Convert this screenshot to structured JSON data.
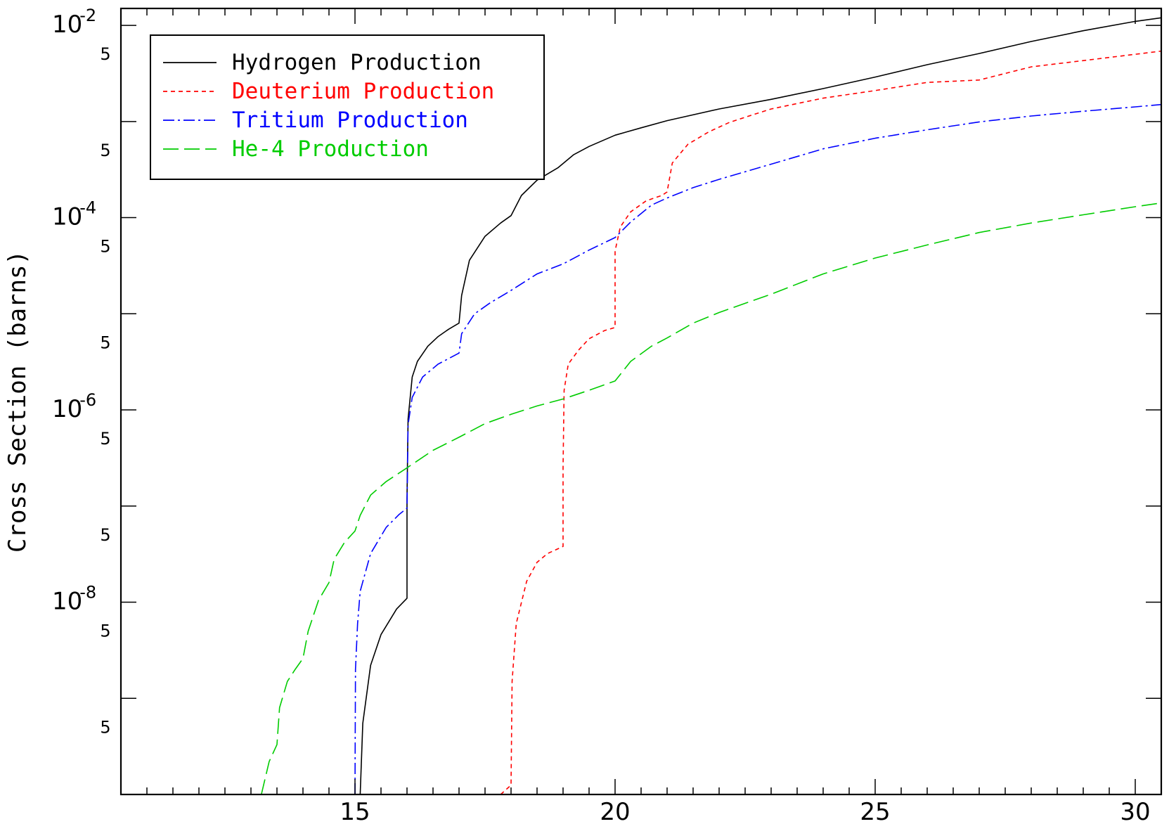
{
  "chart_data": {
    "type": "line",
    "title": "",
    "xlabel": "",
    "ylabel": "Cross Section (barns)",
    "xlim": [
      10.5,
      30.5
    ],
    "ylim": [
      1e-10,
      0.015
    ],
    "yscale": "log",
    "grid": false,
    "legend_position": "top-left",
    "x_ticks": [
      15,
      20,
      25,
      30
    ],
    "y_major_ticks": [
      {
        "value": 0.01,
        "base": "10",
        "exp": "-2"
      },
      {
        "value": 0.0001,
        "base": "10",
        "exp": "-4"
      },
      {
        "value": 1e-06,
        "base": "10",
        "exp": "-6"
      },
      {
        "value": 1e-08,
        "base": "10",
        "exp": "-8"
      }
    ],
    "y_five_ticks": [
      {
        "value": 0.005,
        "label": "5"
      },
      {
        "value": 0.0005,
        "label": "5"
      },
      {
        "value": 5e-05,
        "label": "5"
      },
      {
        "value": 5e-06,
        "label": "5"
      },
      {
        "value": 5e-07,
        "label": "5"
      },
      {
        "value": 5e-08,
        "label": "5"
      },
      {
        "value": 5e-09,
        "label": "5"
      },
      {
        "value": 5e-10,
        "label": "5"
      }
    ],
    "series": [
      {
        "name": "Hydrogen Production",
        "color": "#000000",
        "dash": "",
        "x": [
          15.1,
          15.15,
          15.3,
          15.5,
          15.8,
          16.0,
          16.0,
          16.02,
          16.1,
          16.2,
          16.4,
          16.6,
          16.8,
          17.0,
          17.05,
          17.2,
          17.5,
          17.8,
          18.0,
          18.2,
          18.5,
          18.9,
          19.2,
          19.5,
          20.0,
          20.5,
          21.0,
          22.0,
          23.0,
          24.0,
          25.0,
          26.0,
          27.0,
          28.0,
          29.0,
          30.0,
          30.5
        ],
        "y": [
          1e-10,
          5.5e-10,
          2.2e-09,
          4.6e-09,
          8.5e-09,
          1.1e-08,
          1.2e-07,
          8e-07,
          2.2e-06,
          3.2e-06,
          4.6e-06,
          5.8e-06,
          6.9e-06,
          8e-06,
          1.55e-05,
          3.6e-05,
          6.4e-05,
          8.8e-05,
          0.000105,
          0.00017,
          0.000245,
          0.00033,
          0.00045,
          0.00055,
          0.00072,
          0.00086,
          0.00102,
          0.00135,
          0.0017,
          0.0022,
          0.0029,
          0.0039,
          0.0051,
          0.0068,
          0.0088,
          0.011,
          0.012
        ]
      },
      {
        "name": "Deuterium Production",
        "color": "#ff0000",
        "dash": "6,5",
        "x": [
          17.8,
          18.0,
          18.02,
          18.1,
          18.3,
          18.5,
          18.7,
          19.0,
          19.0,
          19.02,
          19.1,
          19.3,
          19.5,
          19.8,
          20.0,
          20.0,
          20.1,
          20.3,
          20.6,
          20.9,
          21.0,
          21.1,
          21.4,
          21.8,
          22.2,
          22.7,
          23.0,
          24.0,
          25.0,
          26.0,
          27.0,
          28.0,
          29.0,
          30.0,
          30.5
        ],
        "y": [
          1e-10,
          1.25e-10,
          1.5e-09,
          6e-09,
          1.65e-08,
          2.6e-08,
          3.2e-08,
          3.8e-08,
          2.5e-07,
          1.6e-06,
          3e-06,
          4.2e-06,
          5.5e-06,
          6.7e-06,
          7.2e-06,
          4.5e-05,
          8e-05,
          0.000115,
          0.00015,
          0.00017,
          0.000185,
          0.00037,
          0.00058,
          0.00078,
          0.00098,
          0.0012,
          0.00135,
          0.00175,
          0.0021,
          0.00255,
          0.0027,
          0.0037,
          0.0043,
          0.005,
          0.0054
        ]
      },
      {
        "name": "Tritium Production",
        "color": "#0000ff",
        "dash": "16,5,3,5",
        "x": [
          15.0,
          15.01,
          15.05,
          15.1,
          15.3,
          15.6,
          15.85,
          16.0,
          16.02,
          16.1,
          16.3,
          16.6,
          17.0,
          17.05,
          17.3,
          17.6,
          18.0,
          18.5,
          19.0,
          19.5,
          20.0,
          20.3,
          20.7,
          21.0,
          21.5,
          22.0,
          23.0,
          24.0,
          25.0,
          26.0,
          27.0,
          28.0,
          29.0,
          30.0,
          30.5
        ],
        "y": [
          1e-10,
          2e-09,
          6e-09,
          1.3e-08,
          3.2e-08,
          6e-08,
          8.2e-08,
          9.5e-08,
          7e-07,
          1.35e-06,
          2.2e-06,
          3e-06,
          3.9e-06,
          6.2e-06,
          1e-05,
          1.3e-05,
          1.75e-05,
          2.6e-05,
          3.3e-05,
          4.6e-05,
          6.2e-05,
          9e-05,
          0.000135,
          0.00016,
          0.000205,
          0.00025,
          0.00036,
          0.00052,
          0.00067,
          0.00082,
          0.00099,
          0.00114,
          0.00128,
          0.00142,
          0.0015
        ]
      },
      {
        "name": "He-4 Production",
        "color": "#00cc00",
        "dash": "22,8",
        "x": [
          13.2,
          13.35,
          13.5,
          13.55,
          13.7,
          13.85,
          14.0,
          14.1,
          14.3,
          14.5,
          14.6,
          14.8,
          15.0,
          15.1,
          15.3,
          15.6,
          16.0,
          16.5,
          17.0,
          17.5,
          18.0,
          18.5,
          19.0,
          19.5,
          20.0,
          20.3,
          20.7,
          21.0,
          21.5,
          22.0,
          23.0,
          24.0,
          25.0,
          26.0,
          27.0,
          28.0,
          29.0,
          30.0,
          30.5
        ],
        "y": [
          1e-10,
          2.2e-10,
          3.3e-10,
          8e-10,
          1.5e-09,
          2e-09,
          2.6e-09,
          5e-09,
          1.05e-08,
          1.6e-08,
          2.8e-08,
          4.2e-08,
          5.5e-08,
          8e-08,
          1.3e-07,
          1.8e-07,
          2.5e-07,
          3.8e-07,
          5.2e-07,
          7.2e-07,
          9e-07,
          1.1e-06,
          1.3e-06,
          1.6e-06,
          2e-06,
          3.2e-06,
          4.6e-06,
          5.6e-06,
          8e-06,
          1.03e-05,
          1.6e-05,
          2.6e-05,
          3.8e-05,
          5.2e-05,
          7e-05,
          8.8e-05,
          0.000107,
          0.00013,
          0.000142
        ]
      }
    ]
  }
}
